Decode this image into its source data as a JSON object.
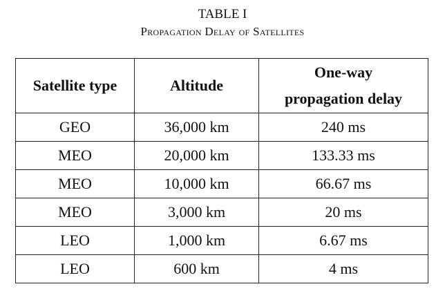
{
  "caption": {
    "label": "TABLE I",
    "title": "Propagation Delay of Satellites"
  },
  "table": {
    "headers": [
      "Satellite type",
      "Altitude",
      "One-way propagation delay"
    ],
    "header_lines": {
      "col3_line1": "One-way",
      "col3_line2": "propagation delay"
    },
    "rows": [
      [
        "GEO",
        "36,000 km",
        "240 ms"
      ],
      [
        "MEO",
        "20,000 km",
        "133.33 ms"
      ],
      [
        "MEO",
        "10,000 km",
        "66.67 ms"
      ],
      [
        "MEO",
        "3,000 km",
        "20 ms"
      ],
      [
        "LEO",
        "1,000 km",
        "6.67 ms"
      ],
      [
        "LEO",
        "600 km",
        "4 ms"
      ]
    ]
  }
}
